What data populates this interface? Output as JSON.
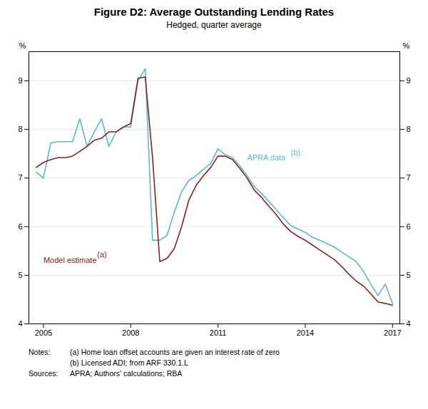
{
  "chart_data": {
    "type": "line",
    "title": "Figure D2: Average Outstanding Lending Rates",
    "subtitle": "Hedged, quarter average",
    "ylabel": "%",
    "y2label": "%",
    "x": [
      2004.75,
      2005.0,
      2005.25,
      2005.5,
      2005.75,
      2006.0,
      2006.25,
      2006.5,
      2006.75,
      2007.0,
      2007.25,
      2007.5,
      2007.75,
      2008.0,
      2008.25,
      2008.5,
      2008.75,
      2009.0,
      2009.25,
      2009.5,
      2009.75,
      2010.0,
      2010.25,
      2010.5,
      2010.75,
      2011.0,
      2011.25,
      2011.5,
      2011.75,
      2012.0,
      2012.25,
      2012.5,
      2012.75,
      2013.0,
      2013.25,
      2013.5,
      2013.75,
      2014.0,
      2014.25,
      2014.5,
      2014.75,
      2015.0,
      2015.25,
      2015.5,
      2015.75,
      2016.0,
      2016.25,
      2016.5,
      2016.75,
      2017.0
    ],
    "series": [
      {
        "color": "#5BB8D4",
        "values": [
          7.12,
          7.0,
          7.72,
          7.75,
          7.75,
          7.75,
          8.22,
          7.65,
          7.95,
          8.22,
          7.65,
          7.95,
          8.05,
          8.05,
          9.0,
          9.25,
          5.72,
          5.72,
          5.82,
          6.3,
          6.72,
          6.95,
          7.05,
          7.18,
          7.3,
          7.6,
          7.48,
          7.42,
          7.25,
          7.05,
          6.82,
          6.68,
          6.52,
          6.35,
          6.18,
          6.02,
          5.95,
          5.88,
          5.78,
          5.72,
          5.65,
          5.58,
          5.48,
          5.38,
          5.28,
          5.08,
          4.82,
          4.58,
          4.82,
          4.42
        ]
      },
      {
        "color": "#8B2020",
        "values": [
          7.22,
          7.32,
          7.38,
          7.42,
          7.42,
          7.45,
          7.55,
          7.65,
          7.78,
          7.82,
          7.95,
          7.95,
          8.05,
          8.12,
          9.05,
          9.08,
          7.42,
          5.28,
          5.35,
          5.55,
          6.0,
          6.55,
          6.85,
          7.05,
          7.22,
          7.45,
          7.45,
          7.38,
          7.2,
          7.0,
          6.75,
          6.6,
          6.42,
          6.25,
          6.05,
          5.9,
          5.8,
          5.72,
          5.62,
          5.52,
          5.42,
          5.32,
          5.18,
          5.02,
          4.88,
          4.78,
          4.62,
          4.45,
          4.42,
          4.38
        ]
      }
    ],
    "annotations": [
      {
        "text": "APRA data",
        "x": 2012.0,
        "y": 7.42,
        "color": "#5BB8D4"
      },
      {
        "text": "(b)",
        "x": 2013.5,
        "y": 7.52,
        "color": "#5BB8D4"
      },
      {
        "text": "Model estimate",
        "x": 2005.0,
        "y": 5.3,
        "color": "#8B2020"
      },
      {
        "text": "(a)",
        "x": 2006.85,
        "y": 5.42,
        "color": "#8B2020"
      }
    ],
    "footnotes": [
      {
        "label": "Notes:",
        "lines": [
          "(a) Home loan offset accounts are given an interest rate of zero",
          "(b) Licensed ADI; from ARF 330.1.L"
        ]
      },
      {
        "label": "Sources:",
        "lines": [
          "APRA; Authors' calculations; RBA"
        ]
      }
    ],
    "xlim": [
      2004.5,
      2017.25
    ],
    "xticks": [
      2005,
      2008,
      2011,
      2014,
      2017
    ],
    "ylim": [
      4,
      9.6
    ],
    "yticks": [
      4,
      5,
      6,
      7,
      8,
      9
    ],
    "grid": true
  }
}
